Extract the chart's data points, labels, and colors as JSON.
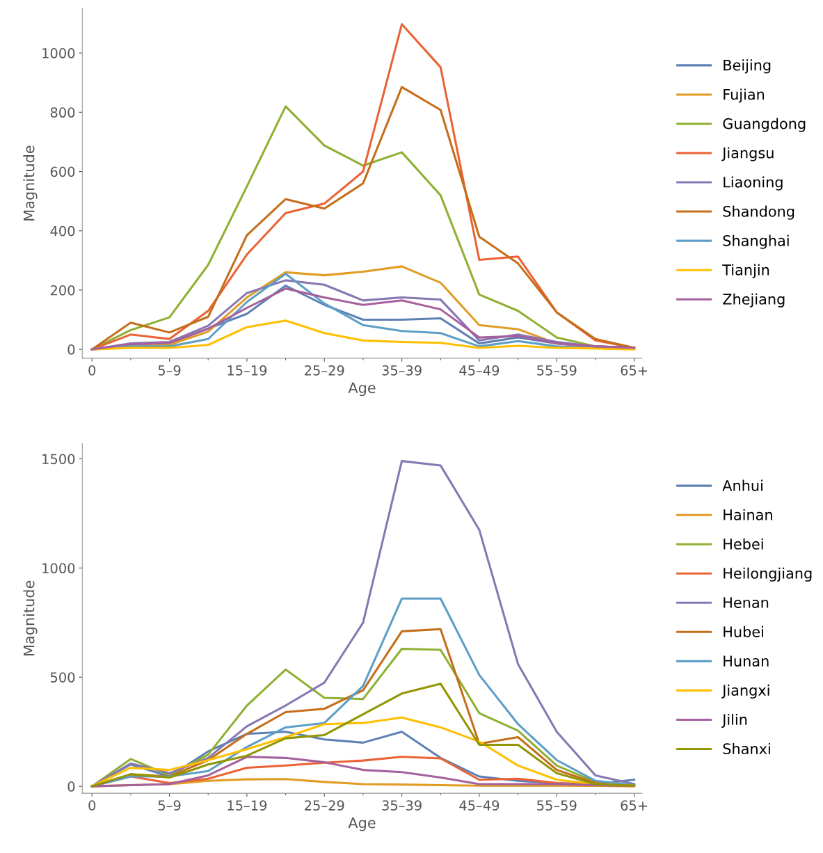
{
  "chart_data": [
    {
      "type": "line",
      "xlabel": "Age",
      "ylabel": "Magnitude",
      "legend": "right",
      "grid": false,
      "categories": [
        "0",
        null,
        "5–9",
        null,
        "15–19",
        null,
        "25–29",
        null,
        "35–39",
        null,
        "45–49",
        null,
        "55–59",
        null,
        "65+"
      ],
      "ylim": [
        -30,
        1150
      ],
      "yticks": [
        0,
        200,
        400,
        600,
        800,
        1000
      ],
      "series": [
        {
          "name": "Beijing",
          "color": "#5e81b5",
          "values": [
            0,
            15,
            20,
            70,
            120,
            215,
            150,
            100,
            100,
            105,
            20,
            40,
            20,
            10,
            5
          ]
        },
        {
          "name": "Fujian",
          "color": "#e19c24",
          "values": [
            0,
            10,
            15,
            60,
            175,
            260,
            250,
            262,
            280,
            225,
            82,
            68,
            20,
            10,
            5
          ]
        },
        {
          "name": "Guangdong",
          "color": "#8fb032",
          "values": [
            0,
            65,
            108,
            285,
            550,
            820,
            688,
            620,
            665,
            520,
            185,
            130,
            40,
            10,
            5
          ]
        },
        {
          "name": "Jiangsu",
          "color": "#eb6235",
          "values": [
            0,
            50,
            35,
            130,
            320,
            460,
            492,
            600,
            1097,
            952,
            302,
            313,
            125,
            30,
            5
          ]
        },
        {
          "name": "Liaoning",
          "color": "#8778b3",
          "values": [
            0,
            20,
            25,
            80,
            190,
            233,
            218,
            165,
            175,
            168,
            30,
            50,
            25,
            10,
            5
          ]
        },
        {
          "name": "Shandong",
          "color": "#c56e1a",
          "values": [
            0,
            90,
            57,
            110,
            385,
            507,
            475,
            560,
            885,
            808,
            380,
            290,
            125,
            35,
            5
          ]
        },
        {
          "name": "Shanghai",
          "color": "#5d9ec7",
          "values": [
            0,
            10,
            10,
            35,
            160,
            255,
            155,
            82,
            62,
            55,
            10,
            28,
            10,
            5,
            3
          ]
        },
        {
          "name": "Tianjin",
          "color": "#ffbf00",
          "values": [
            0,
            5,
            5,
            15,
            75,
            97,
            55,
            30,
            25,
            22,
            5,
            12,
            5,
            3,
            0
          ]
        },
        {
          "name": "Zhejiang",
          "color": "#a5609d",
          "values": [
            0,
            18,
            22,
            70,
            140,
            205,
            175,
            150,
            165,
            135,
            40,
            45,
            20,
            10,
            5
          ]
        }
      ]
    },
    {
      "type": "line",
      "xlabel": "Age",
      "ylabel": "Magnitude",
      "legend": "right",
      "grid": false,
      "categories": [
        "0",
        null,
        "5–9",
        null,
        "15–19",
        null,
        "25–29",
        null,
        "35–39",
        null,
        "45–49",
        null,
        "55–59",
        null,
        "65+"
      ],
      "ylim": [
        -32,
        1570
      ],
      "yticks": [
        0,
        500,
        1000,
        1500
      ],
      "series": [
        {
          "name": "Anhui",
          "color": "#5e81b5",
          "values": [
            0,
            100,
            45,
            160,
            240,
            250,
            215,
            200,
            250,
            130,
            45,
            25,
            15,
            10,
            30
          ]
        },
        {
          "name": "Hainan",
          "color": "#e19c24",
          "values": [
            0,
            5,
            10,
            25,
            32,
            33,
            20,
            10,
            8,
            5,
            3,
            3,
            3,
            2,
            0
          ]
        },
        {
          "name": "Hebei",
          "color": "#8fb032",
          "values": [
            0,
            125,
            50,
            145,
            370,
            535,
            405,
            400,
            630,
            625,
            335,
            255,
            95,
            20,
            5
          ]
        },
        {
          "name": "Heilongjiang",
          "color": "#eb6235",
          "values": [
            0,
            45,
            15,
            35,
            85,
            95,
            108,
            118,
            135,
            128,
            30,
            35,
            15,
            5,
            3
          ]
        },
        {
          "name": "Henan",
          "color": "#8778b3",
          "values": [
            0,
            105,
            60,
            130,
            275,
            370,
            475,
            750,
            1490,
            1470,
            1175,
            560,
            250,
            50,
            10
          ]
        },
        {
          "name": "Hubei",
          "color": "#c56e1a",
          "values": [
            0,
            55,
            45,
            120,
            240,
            340,
            355,
            440,
            710,
            720,
            195,
            225,
            75,
            15,
            5
          ]
        },
        {
          "name": "Hunan",
          "color": "#5d9ec7",
          "values": [
            0,
            45,
            45,
            70,
            180,
            270,
            290,
            460,
            860,
            860,
            510,
            285,
            120,
            25,
            5
          ]
        },
        {
          "name": "Jiangxi",
          "color": "#ffbf00",
          "values": [
            0,
            85,
            75,
            120,
            170,
            225,
            285,
            290,
            315,
            270,
            205,
            95,
            30,
            10,
            3
          ]
        },
        {
          "name": "Jilin",
          "color": "#a5609d",
          "values": [
            0,
            5,
            10,
            50,
            135,
            130,
            110,
            75,
            65,
            40,
            10,
            10,
            10,
            5,
            3
          ]
        },
        {
          "name": "Shanxi",
          "color": "#929600",
          "values": [
            0,
            55,
            40,
            100,
            140,
            220,
            235,
            330,
            425,
            470,
            190,
            190,
            60,
            10,
            3
          ]
        }
      ]
    }
  ]
}
